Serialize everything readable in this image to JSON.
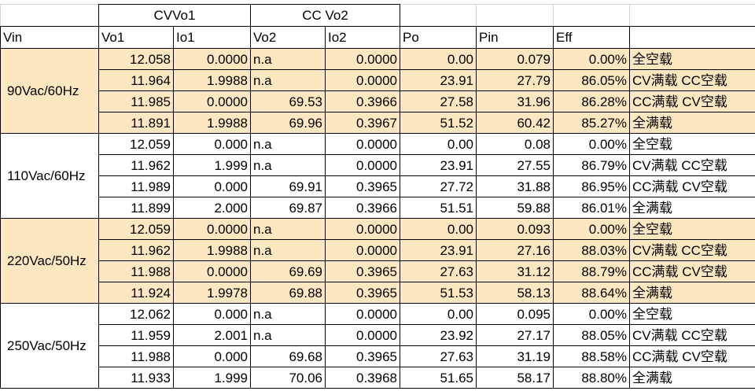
{
  "table": {
    "group_headers": [
      "CVVo1",
      "CC Vo2"
    ],
    "columns": [
      "Vin",
      "Vo1",
      "Io1",
      "Vo2",
      "Io2",
      "Po",
      "Pin",
      "Eff"
    ],
    "groups": [
      {
        "vin": "90Vac/60Hz",
        "rows": [
          [
            "12.058",
            "0.0000",
            "n.a",
            "0.0000",
            "0.00",
            "0.079",
            "0.00%",
            "全空载"
          ],
          [
            "11.964",
            "1.9988",
            "n.a",
            "0.0000",
            "23.91",
            "27.79",
            "86.05%",
            "CV满载 CC空载"
          ],
          [
            "11.985",
            "0.0000",
            "69.53",
            "0.3966",
            "27.58",
            "31.96",
            "86.28%",
            "CC满载 CV空载"
          ],
          [
            "11.891",
            "1.9988",
            "69.96",
            "0.3967",
            "51.52",
            "60.42",
            "85.27%",
            "全满载"
          ]
        ]
      },
      {
        "vin": "110Vac/60Hz",
        "rows": [
          [
            "12.059",
            "0.000",
            "n.a",
            "0.0000",
            "0.00",
            "0.08",
            "0.00%",
            "全空载"
          ],
          [
            "11.962",
            "1.999",
            "n.a",
            "0.0000",
            "23.91",
            "27.55",
            "86.79%",
            "CV满载 CC空载"
          ],
          [
            "11.989",
            "0.000",
            "69.91",
            "0.3965",
            "27.72",
            "31.88",
            "86.95%",
            "CC满载 CV空载"
          ],
          [
            "11.899",
            "2.000",
            "69.87",
            "0.3966",
            "51.51",
            "59.88",
            "86.01%",
            "全满载"
          ]
        ]
      },
      {
        "vin": "220Vac/50Hz",
        "rows": [
          [
            "12.059",
            "0.0000",
            "n.a",
            "0.0000",
            "0.00",
            "0.093",
            "0.00%",
            "全空载"
          ],
          [
            "11.962",
            "1.9988",
            "n.a",
            "0.0000",
            "23.91",
            "27.16",
            "88.03%",
            "CV满载 CC空载"
          ],
          [
            "11.988",
            "0.0000",
            "69.69",
            "0.3965",
            "27.63",
            "31.12",
            "88.79%",
            "CC满载 CV空载"
          ],
          [
            "11.924",
            "1.9978",
            "69.88",
            "0.3965",
            "51.53",
            "58.13",
            "88.64%",
            "全满载"
          ]
        ]
      },
      {
        "vin": "250Vac/50Hz",
        "rows": [
          [
            "12.062",
            "0.000",
            "n.a",
            "0.0000",
            "0.00",
            "0.095",
            "0.00%",
            "全空载"
          ],
          [
            "11.959",
            "2.001",
            "n.a",
            "0.0000",
            "23.92",
            "27.17",
            "88.05%",
            "CV满载 CC空载"
          ],
          [
            "11.988",
            "0.000",
            "69.68",
            "0.3965",
            "27.63",
            "31.19",
            "88.58%",
            "CC满载 CV空载"
          ],
          [
            "11.933",
            "1.999",
            "70.06",
            "0.3968",
            "51.65",
            "58.17",
            "88.80%",
            "全满载"
          ]
        ]
      }
    ]
  }
}
